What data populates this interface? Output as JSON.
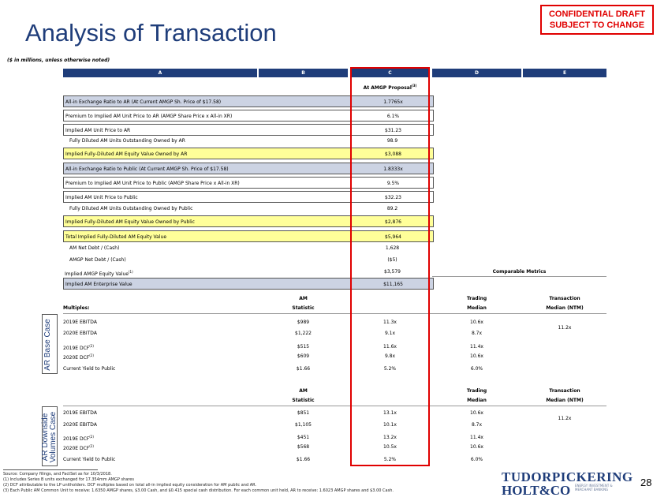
{
  "title": "Analysis of Transaction",
  "badge": {
    "line1": "CONFIDENTIAL DRAFT",
    "line2": "SUBJECT TO CHANGE"
  },
  "units_note": "($ in millions, unless otherwise noted)",
  "columns": [
    "A",
    "B",
    "C",
    "D",
    "E"
  ],
  "proposal_header": "At AMGP Proposal",
  "proposal_sup": "(3)",
  "rows": [
    {
      "label": "All-in Exchange Ratio to AR (At Current AMGP Sh. Price of $17.58)",
      "value": "1.7765x"
    },
    {
      "label": "Premium to Implied AM Unit Price to AR (AMGP Share Price x All-in XR)",
      "value": "6.1%"
    },
    {
      "label": "Implied AM Unit Price to AR",
      "value": "$31.23"
    },
    {
      "label": "Fully Diluted AM Units Outstanding Owned by AR",
      "value": "98.9"
    },
    {
      "label": "Implied Fully-Diluted AM Equity Value Owned by AR",
      "value": "$3,088"
    },
    {
      "label": "All-in Exchange Ratio to Public (At Current AMGP Sh. Price of $17.58)",
      "value": "1.8333x"
    },
    {
      "label": "Premium to Implied AM Unit Price to Public (AMGP Share Price x All-in XR)",
      "value": "9.5%"
    },
    {
      "label": "Implied AM Unit Price to Public",
      "value": "$32.23"
    },
    {
      "label": "Fully Diluted AM Units Outstanding Owned by Public",
      "value": "89.2"
    },
    {
      "label": "Implied Fully-Diluted AM Equity Value Owned by Public",
      "value": "$2,876"
    },
    {
      "label": "Total Implied Fully-Diluted AM Equity Value",
      "value": "$5,964"
    },
    {
      "label": "AM Net Debt / (Cash)",
      "value": "1,628"
    },
    {
      "label": "AMGP Net Debt / (Cash)",
      "value": "($5)"
    },
    {
      "label": "Implied AMGP Equity Value",
      "sup": "(1)",
      "value": "$3,579"
    },
    {
      "label": "Implied AM Enterprise Value",
      "value": "$11,165"
    }
  ],
  "comparable_metrics": "Comparable Metrics",
  "multiples": {
    "label": "Multiples:",
    "h_am": "AM",
    "h_statistic": "Statistic",
    "h_trading": "Trading",
    "h_median": "Median",
    "h_transaction": "Transaction",
    "h_median_ntm": "Median (NTM)"
  },
  "base_case": {
    "side_label_1": "AR Base Case",
    "rows": [
      {
        "label": "2019E EBITDA",
        "sup": "",
        "am": "$989",
        "mult": "11.3x",
        "trading": "10.6x"
      },
      {
        "label": "2020E EBITDA",
        "sup": "",
        "am": "$1,222",
        "mult": "9.1x",
        "trading": "8.7x"
      },
      {
        "label": "2019E DCF",
        "sup": "(2)",
        "am": "$515",
        "mult": "11.6x",
        "trading": "11.4x"
      },
      {
        "label": "2020E DCF",
        "sup": "(2)",
        "am": "$609",
        "mult": "9.8x",
        "trading": "10.6x"
      },
      {
        "label": "Current Yield to Public",
        "sup": "",
        "am": "$1.66",
        "mult": "5.2%",
        "trading": "6.0%"
      }
    ],
    "transaction": "11.2x"
  },
  "downside_case": {
    "side_label_1": "AR Downside",
    "side_label_2": "Volumes Case",
    "rows": [
      {
        "label": "2019E EBITDA",
        "sup": "",
        "am": "$851",
        "mult": "13.1x",
        "trading": "10.6x"
      },
      {
        "label": "2020E EBITDA",
        "sup": "",
        "am": "$1,105",
        "mult": "10.1x",
        "trading": "8.7x"
      },
      {
        "label": "2019E DCF",
        "sup": "(2)",
        "am": "$451",
        "mult": "13.2x",
        "trading": "11.4x"
      },
      {
        "label": "2020E DCF",
        "sup": "(2)",
        "am": "$568",
        "mult": "10.5x",
        "trading": "10.6x"
      },
      {
        "label": "Current Yield to Public",
        "sup": "",
        "am": "$1.66",
        "mult": "5.2%",
        "trading": "6.0%"
      }
    ],
    "transaction": "11.2x"
  },
  "footnotes": [
    "Source: Company filings, and FactSet as for 10/3/2018.",
    "(1)     Includes Series B units exchanged for 17.354mm AMGP shares",
    "(2)     DCF attributable to the LP unitholders. DCF multiples based on total all-in implied equity consideration for AM public and AR.",
    "(3)     Each Public AM Common Unit to receive: 1.6350 AMGP shares, $3.00 Cash, and $0.415 special cash distribution. For each common unit held, AR to receive: 1.6023 AMGP shares and $3.00 Cash."
  ],
  "logo": {
    "line1": "TUDORPICKERING",
    "line2": "HOLT&CO",
    "tag1": "ENERGY INVESTMENT &",
    "tag2": "MERCHANT BANKING"
  },
  "page_number": "28",
  "colors": {
    "navy": "#1f3d7a",
    "red": "#e00000",
    "shade": "#ccd3e3",
    "yellow": "#ffff99"
  }
}
